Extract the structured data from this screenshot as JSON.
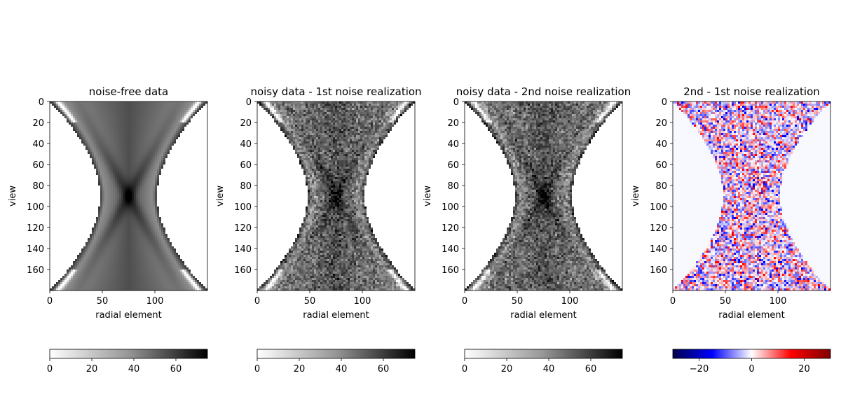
{
  "chart_data": [
    {
      "type": "heatmap",
      "title": "noise-free data",
      "xlabel": "radial element",
      "ylabel": "view",
      "x_range": [
        0,
        150
      ],
      "y_range": [
        0,
        180
      ],
      "y_inverted": true,
      "xticks": [
        0,
        50,
        100
      ],
      "yticks": [
        0,
        20,
        40,
        60,
        80,
        100,
        120,
        140,
        160
      ],
      "colormap": "Greys",
      "colorbar": {
        "orientation": "horizontal",
        "range": [
          0,
          75
        ],
        "ticks": [
          0,
          20,
          40,
          60
        ]
      }
    },
    {
      "type": "heatmap",
      "title": "noisy data - 1st noise realization",
      "xlabel": "radial element",
      "ylabel": "view",
      "x_range": [
        0,
        150
      ],
      "y_range": [
        0,
        180
      ],
      "y_inverted": true,
      "xticks": [
        0,
        50,
        100
      ],
      "yticks": [
        0,
        20,
        40,
        60,
        80,
        100,
        120,
        140,
        160
      ],
      "colormap": "Greys",
      "colorbar": {
        "orientation": "horizontal",
        "range": [
          0,
          75
        ],
        "ticks": [
          0,
          20,
          40,
          60
        ]
      }
    },
    {
      "type": "heatmap",
      "title": "noisy data - 2nd noise realization",
      "xlabel": "radial element",
      "ylabel": "view",
      "x_range": [
        0,
        150
      ],
      "y_range": [
        0,
        180
      ],
      "y_inverted": true,
      "xticks": [
        0,
        50,
        100
      ],
      "yticks": [
        0,
        20,
        40,
        60,
        80,
        100,
        120,
        140,
        160
      ],
      "colormap": "Greys",
      "colorbar": {
        "orientation": "horizontal",
        "range": [
          0,
          75
        ],
        "ticks": [
          0,
          20,
          40,
          60
        ]
      }
    },
    {
      "type": "heatmap",
      "title": "2nd - 1st noise realization",
      "xlabel": "radial element",
      "ylabel": "view",
      "x_range": [
        0,
        150
      ],
      "y_range": [
        0,
        180
      ],
      "y_inverted": true,
      "xticks": [
        0,
        50,
        100
      ],
      "yticks": [
        0,
        20,
        40,
        60,
        80,
        100,
        120,
        140,
        160
      ],
      "colormap": "seismic",
      "colorbar": {
        "orientation": "horizontal",
        "range": [
          -30,
          30
        ],
        "ticks": [
          -20,
          0,
          20
        ]
      }
    }
  ]
}
